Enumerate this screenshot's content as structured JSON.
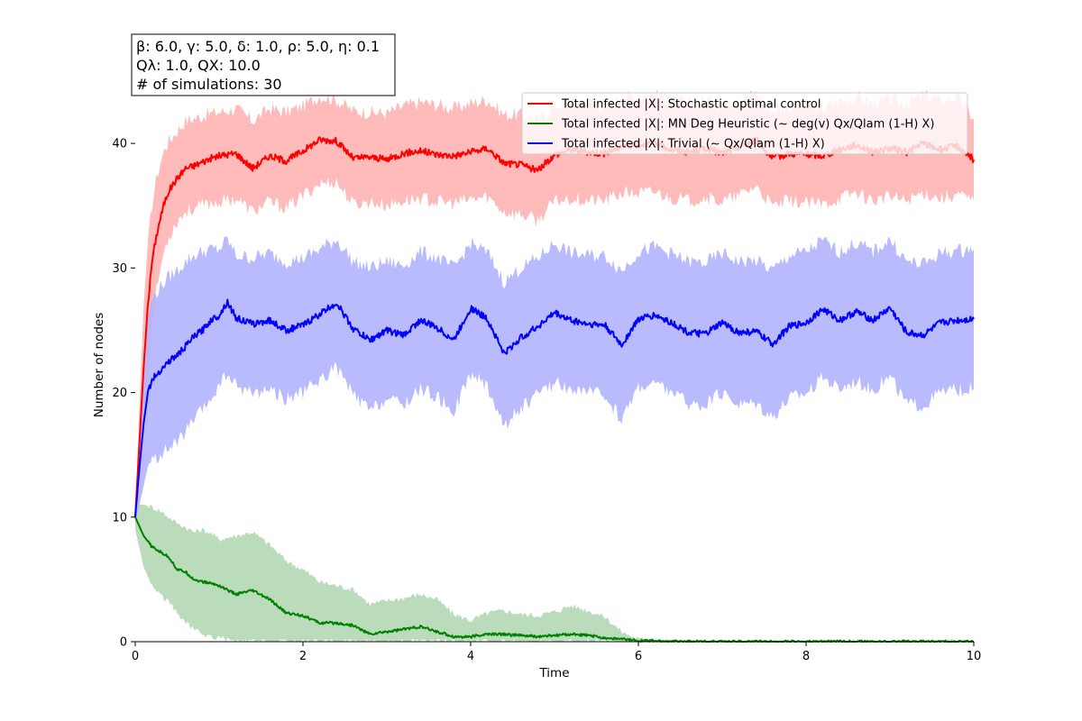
{
  "params_box": {
    "line1": "β: 6.0, γ: 5.0, δ: 1.0, ρ: 5.0, η: 0.1",
    "line2": "Qλ: 1.0, QX: 10.0",
    "line3": "# of simulations: 30"
  },
  "chart_data": {
    "type": "line",
    "title": "",
    "xlabel": "Time",
    "ylabel": "Number of nodes",
    "xlim": [
      0,
      10
    ],
    "ylim": [
      0,
      45
    ],
    "xticks": [
      0,
      2,
      4,
      6,
      8,
      10
    ],
    "yticks": [
      0,
      10,
      20,
      30,
      40
    ],
    "grid": false,
    "legend_position": "top-right",
    "series": [
      {
        "name": "Total infected |X|: Stochastic optimal control",
        "color": "#ff0000",
        "band_color": "#ffb3b3",
        "x": [
          0,
          0.05,
          0.1,
          0.15,
          0.2,
          0.25,
          0.3,
          0.35,
          0.4,
          0.5,
          0.6,
          0.7,
          0.8,
          0.9,
          1.0,
          1.2,
          1.4,
          1.6,
          1.8,
          2.0,
          2.2,
          2.4,
          2.6,
          2.8,
          3.0,
          3.2,
          3.4,
          3.6,
          3.8,
          4.0,
          4.2,
          4.4,
          4.6,
          4.8,
          5.0,
          5.2,
          5.4,
          5.6,
          5.8,
          6.0,
          6.2,
          6.4,
          6.6,
          6.8,
          7.0,
          7.2,
          7.4,
          7.6,
          7.8,
          8.0,
          8.2,
          8.4,
          8.6,
          8.8,
          9.0,
          9.2,
          9.4,
          9.6,
          9.8,
          10.0
        ],
        "mean": [
          10,
          16,
          22,
          27,
          30.5,
          32.5,
          34,
          35.3,
          36.2,
          37.2,
          38,
          38.2,
          38.5,
          38.8,
          39,
          39.2,
          38,
          39,
          38.6,
          39.4,
          40.3,
          40.2,
          38.8,
          38.9,
          38.7,
          39.2,
          39.4,
          39.1,
          39,
          39.3,
          39.6,
          38.4,
          38.3,
          37.8,
          39.1,
          39.5,
          39.3,
          39.2,
          39.8,
          39.9,
          40,
          39.5,
          39.3,
          39.6,
          39.2,
          39.7,
          40.3,
          38.8,
          39.2,
          39.1,
          39,
          39.5,
          39.9,
          39.3,
          39.6,
          39.3,
          40,
          39.5,
          39.8,
          38.7
        ],
        "upper": [
          10.5,
          19,
          27,
          32,
          35,
          37,
          38.5,
          39.5,
          40.2,
          41,
          41.8,
          42,
          42.2,
          42.4,
          42.5,
          42.8,
          41.8,
          42.8,
          42.5,
          43,
          43.8,
          43.5,
          42.6,
          42.5,
          42.4,
          43,
          43.3,
          43.1,
          42.8,
          43.2,
          43.5,
          42.3,
          42.3,
          41.8,
          43,
          43.4,
          43.2,
          43,
          43.6,
          43.8,
          43.9,
          43.4,
          43.2,
          43.5,
          43.1,
          43.6,
          44,
          42.7,
          43,
          43,
          42.9,
          43.4,
          43.7,
          43.2,
          43.5,
          43.2,
          43.9,
          43.4,
          43.7,
          42
        ],
        "lower": [
          9.5,
          13,
          17,
          21.5,
          25.5,
          28,
          30,
          31.5,
          32.5,
          33.8,
          34.5,
          34.8,
          35,
          35.2,
          35.3,
          35.6,
          34.5,
          35.3,
          34.8,
          35.8,
          36.8,
          36.9,
          35.1,
          35.3,
          35,
          35.4,
          35.6,
          35.3,
          35.2,
          35.5,
          35.7,
          34.5,
          34.3,
          33.8,
          35.3,
          35.6,
          35.4,
          35.4,
          36,
          36,
          36.1,
          35.6,
          35.4,
          35.7,
          35.3,
          35.8,
          36.6,
          34.9,
          35.4,
          35.2,
          35.1,
          35.6,
          36.1,
          35.4,
          35.7,
          35.4,
          36.1,
          35.6,
          35.9,
          35.4
        ]
      },
      {
        "name": "Total infected |X|: MN Deg Heuristic (~ deg(v) Qx/Qlam (1-H) X)",
        "color": "#008000",
        "band_color": "#b2d8b2",
        "x": [
          0,
          0.1,
          0.2,
          0.3,
          0.4,
          0.5,
          0.6,
          0.7,
          0.8,
          0.9,
          1.0,
          1.2,
          1.4,
          1.6,
          1.8,
          2.0,
          2.2,
          2.4,
          2.6,
          2.8,
          3.0,
          3.2,
          3.4,
          3.6,
          3.8,
          4.0,
          4.2,
          4.4,
          4.6,
          4.8,
          5.0,
          5.2,
          5.4,
          5.6,
          5.8,
          6.0,
          6.5,
          7,
          8,
          9,
          10
        ],
        "mean": [
          10,
          8.5,
          7.6,
          7.2,
          6.8,
          5.8,
          5.6,
          5,
          4.8,
          4.7,
          4.5,
          3.8,
          4.1,
          3.4,
          2.3,
          2.1,
          1.5,
          1.5,
          1.3,
          0.6,
          0.8,
          1.0,
          1.2,
          0.8,
          0.4,
          0.4,
          0.6,
          0.6,
          0.5,
          0.4,
          0.5,
          0.6,
          0.5,
          0.3,
          0.2,
          0.1,
          0,
          0,
          0,
          0,
          0
        ],
        "upper": [
          11,
          11,
          10.8,
          10.5,
          10,
          9.5,
          9.2,
          8.8,
          9,
          8.7,
          8.2,
          8.5,
          8.8,
          7.8,
          6.5,
          5.8,
          4.8,
          4.5,
          4.2,
          3,
          3.3,
          3.5,
          3.8,
          3.4,
          2.2,
          1.7,
          2.3,
          2.5,
          2.2,
          2.1,
          2.4,
          2.9,
          2.5,
          2,
          0.8,
          0.2,
          0,
          0,
          0,
          0,
          0
        ],
        "lower": [
          9,
          6,
          4.5,
          3.8,
          3.2,
          2.3,
          1.5,
          1,
          0.6,
          0.4,
          0.3,
          0,
          0,
          0,
          0,
          0,
          0,
          0,
          0,
          0,
          0,
          0,
          0,
          0,
          0,
          0,
          0,
          0,
          0,
          0,
          0,
          0,
          0,
          0,
          0,
          0,
          0,
          0,
          0,
          0,
          0
        ]
      },
      {
        "name": "Total infected |X|: Trivial (~ Qx/Qlam (1-H) X)",
        "color": "#0000ff",
        "band_color": "#b2b2ff",
        "x": [
          0,
          0.05,
          0.1,
          0.15,
          0.2,
          0.3,
          0.4,
          0.5,
          0.6,
          0.7,
          0.8,
          0.9,
          1.0,
          1.1,
          1.2,
          1.4,
          1.6,
          1.8,
          2.0,
          2.2,
          2.4,
          2.6,
          2.8,
          3.0,
          3.2,
          3.4,
          3.6,
          3.8,
          4.0,
          4.2,
          4.4,
          4.6,
          4.8,
          5.0,
          5.2,
          5.4,
          5.6,
          5.8,
          6.0,
          6.2,
          6.4,
          6.6,
          6.8,
          7.0,
          7.2,
          7.4,
          7.6,
          7.8,
          8.0,
          8.2,
          8.4,
          8.6,
          8.8,
          9.0,
          9.2,
          9.4,
          9.6,
          9.8,
          10.0
        ],
        "mean": [
          10,
          14,
          17.5,
          20,
          21,
          21.8,
          22.5,
          23,
          23.7,
          24.5,
          25,
          25.8,
          26.2,
          27.3,
          26,
          25.5,
          25.8,
          25,
          25.4,
          26.3,
          27.2,
          25.1,
          24.2,
          25,
          24.6,
          25.8,
          25.2,
          24.2,
          26.8,
          25.9,
          23.1,
          24.4,
          25.3,
          26.4,
          25.8,
          25.5,
          25.4,
          23.8,
          25.9,
          26.2,
          25.6,
          24.8,
          24.7,
          25.6,
          24.8,
          24.9,
          23.9,
          25.3,
          25.6,
          26.7,
          25.8,
          26.5,
          25.8,
          26.8,
          24.8,
          24.6,
          25.6,
          25.8,
          25.9
        ],
        "upper": [
          10.5,
          17,
          22.5,
          26,
          27.5,
          28.5,
          29.3,
          29.8,
          30.5,
          31,
          31.3,
          31.5,
          31.5,
          32.3,
          31,
          30.8,
          31.2,
          30.5,
          30.8,
          31.5,
          32.3,
          30.5,
          30,
          30.5,
          30.2,
          31.3,
          30.8,
          30,
          32,
          31.2,
          28.9,
          30,
          30.8,
          32,
          31.2,
          31,
          31,
          29.8,
          31.3,
          31.7,
          31.1,
          30.5,
          30.4,
          31.2,
          30.5,
          30.6,
          29.8,
          31,
          31.3,
          32.2,
          31.3,
          32,
          31.3,
          32.3,
          30.5,
          30.3,
          31.2,
          31.4,
          31.5
        ],
        "lower": [
          9.5,
          11,
          12.5,
          14,
          14.5,
          15,
          15.5,
          16,
          16.8,
          17.8,
          18.5,
          19.5,
          20.5,
          21.5,
          20.5,
          20,
          20.3,
          19.5,
          20,
          21,
          22,
          19.8,
          18.5,
          19.5,
          19,
          20.3,
          19.6,
          18.5,
          21.5,
          20.5,
          17.3,
          18.8,
          19.8,
          20.8,
          20.3,
          20,
          19.8,
          17.8,
          20.5,
          20.7,
          20.1,
          19.1,
          19,
          20,
          19.1,
          19.2,
          18.1,
          19.6,
          20,
          21.2,
          20.3,
          21,
          20.2,
          21.3,
          19.1,
          18.9,
          20,
          20.2,
          20.3
        ]
      }
    ]
  }
}
